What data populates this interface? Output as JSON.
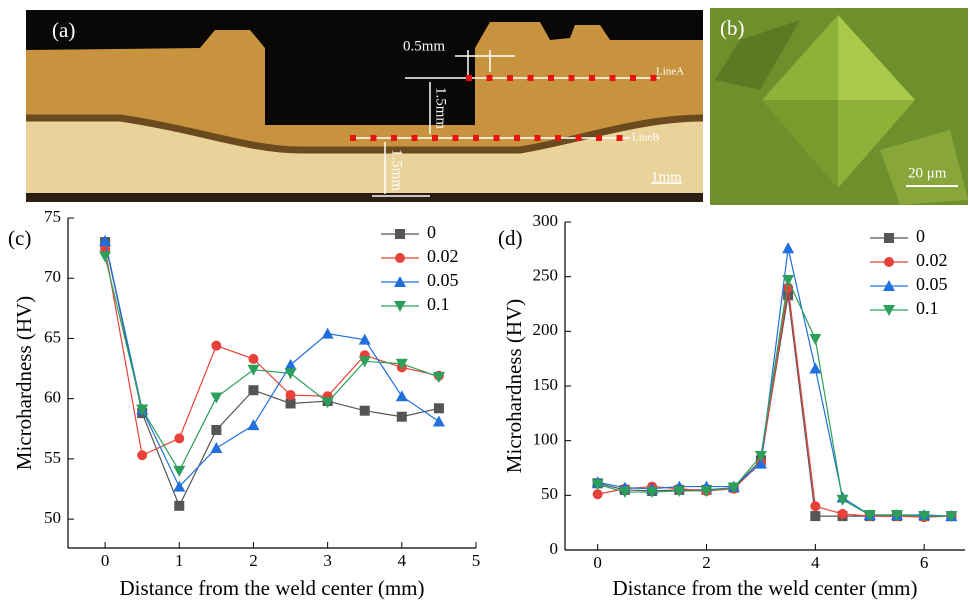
{
  "panel_a": {
    "label": "(a)",
    "spacing": "0.5mm",
    "depth_a": "1.5mm",
    "depth_b": "1.5mm",
    "line_a": "LineA",
    "line_b": "LineB",
    "scale": "1mm"
  },
  "panel_b": {
    "label": "(b)",
    "scale": "20 μm"
  },
  "chart_data": [
    {
      "type": "line",
      "panel_label": "(c)",
      "x_label": "Distance from the weld center (mm)",
      "y_label": "Microhardness (HV)",
      "x": [
        0,
        0.5,
        1,
        1.5,
        2,
        2.5,
        3,
        3.5,
        4,
        4.5
      ],
      "xlim": [
        -0.5,
        5
      ],
      "xticks": [
        0,
        1,
        2,
        3,
        4,
        5
      ],
      "ylim": [
        47.6,
        75
      ],
      "yticks": [
        50,
        55,
        60,
        65,
        70,
        75
      ],
      "legend": "upper right",
      "series": [
        {
          "name": "0",
          "color": "#555555",
          "marker": "square",
          "values": [
            73.0,
            58.8,
            51.1,
            57.4,
            60.7,
            59.6,
            59.8,
            59.0,
            58.5,
            59.2
          ]
        },
        {
          "name": "0.02",
          "color": "#e8413a",
          "marker": "circle",
          "values": [
            72.4,
            55.3,
            56.7,
            64.4,
            63.3,
            60.3,
            60.2,
            63.6,
            62.6,
            61.9
          ]
        },
        {
          "name": "0.05",
          "color": "#1f6fdd",
          "marker": "triangle-up",
          "values": [
            73.1,
            59.1,
            52.7,
            55.9,
            57.8,
            62.8,
            65.4,
            64.9,
            60.2,
            58.1
          ]
        },
        {
          "name": "0.1",
          "color": "#2ca05a",
          "marker": "triangle-down",
          "values": [
            71.8,
            59.1,
            54.0,
            60.1,
            62.4,
            62.1,
            59.7,
            63.1,
            62.9,
            61.8
          ]
        }
      ]
    },
    {
      "type": "line",
      "panel_label": "(d)",
      "x_label": "Distance from the weld center (mm)",
      "y_label": "Microhardness (HV)",
      "x": [
        0,
        0.5,
        1,
        1.5,
        2,
        2.5,
        3,
        3.5,
        4,
        4.5,
        5,
        5.5,
        6,
        6.5
      ],
      "xlim": [
        -0.6,
        6.75
      ],
      "xticks": [
        0,
        2,
        4,
        6
      ],
      "ylim": [
        0,
        300
      ],
      "yticks": [
        0,
        50,
        100,
        150,
        200,
        250,
        300
      ],
      "legend": "upper right",
      "series": [
        {
          "name": "0",
          "color": "#555555",
          "marker": "square",
          "values": [
            61,
            55,
            54,
            55,
            55,
            57,
            82,
            233,
            31,
            31,
            31,
            31,
            31,
            31
          ]
        },
        {
          "name": "0.02",
          "color": "#e8413a",
          "marker": "circle",
          "values": [
            51,
            56,
            58,
            56,
            54,
            56,
            80,
            240,
            40,
            33,
            31,
            31,
            30,
            31
          ]
        },
        {
          "name": "0.05",
          "color": "#1f6fdd",
          "marker": "triangle-up",
          "values": [
            62,
            57,
            56,
            58,
            58,
            58,
            79,
            276,
            166,
            48,
            32,
            32,
            32,
            31
          ]
        },
        {
          "name": "0.1",
          "color": "#2ca05a",
          "marker": "triangle-down",
          "values": [
            60,
            53,
            53,
            54,
            54,
            57,
            86,
            247,
            193,
            46,
            32,
            32,
            31,
            31
          ]
        }
      ]
    }
  ]
}
